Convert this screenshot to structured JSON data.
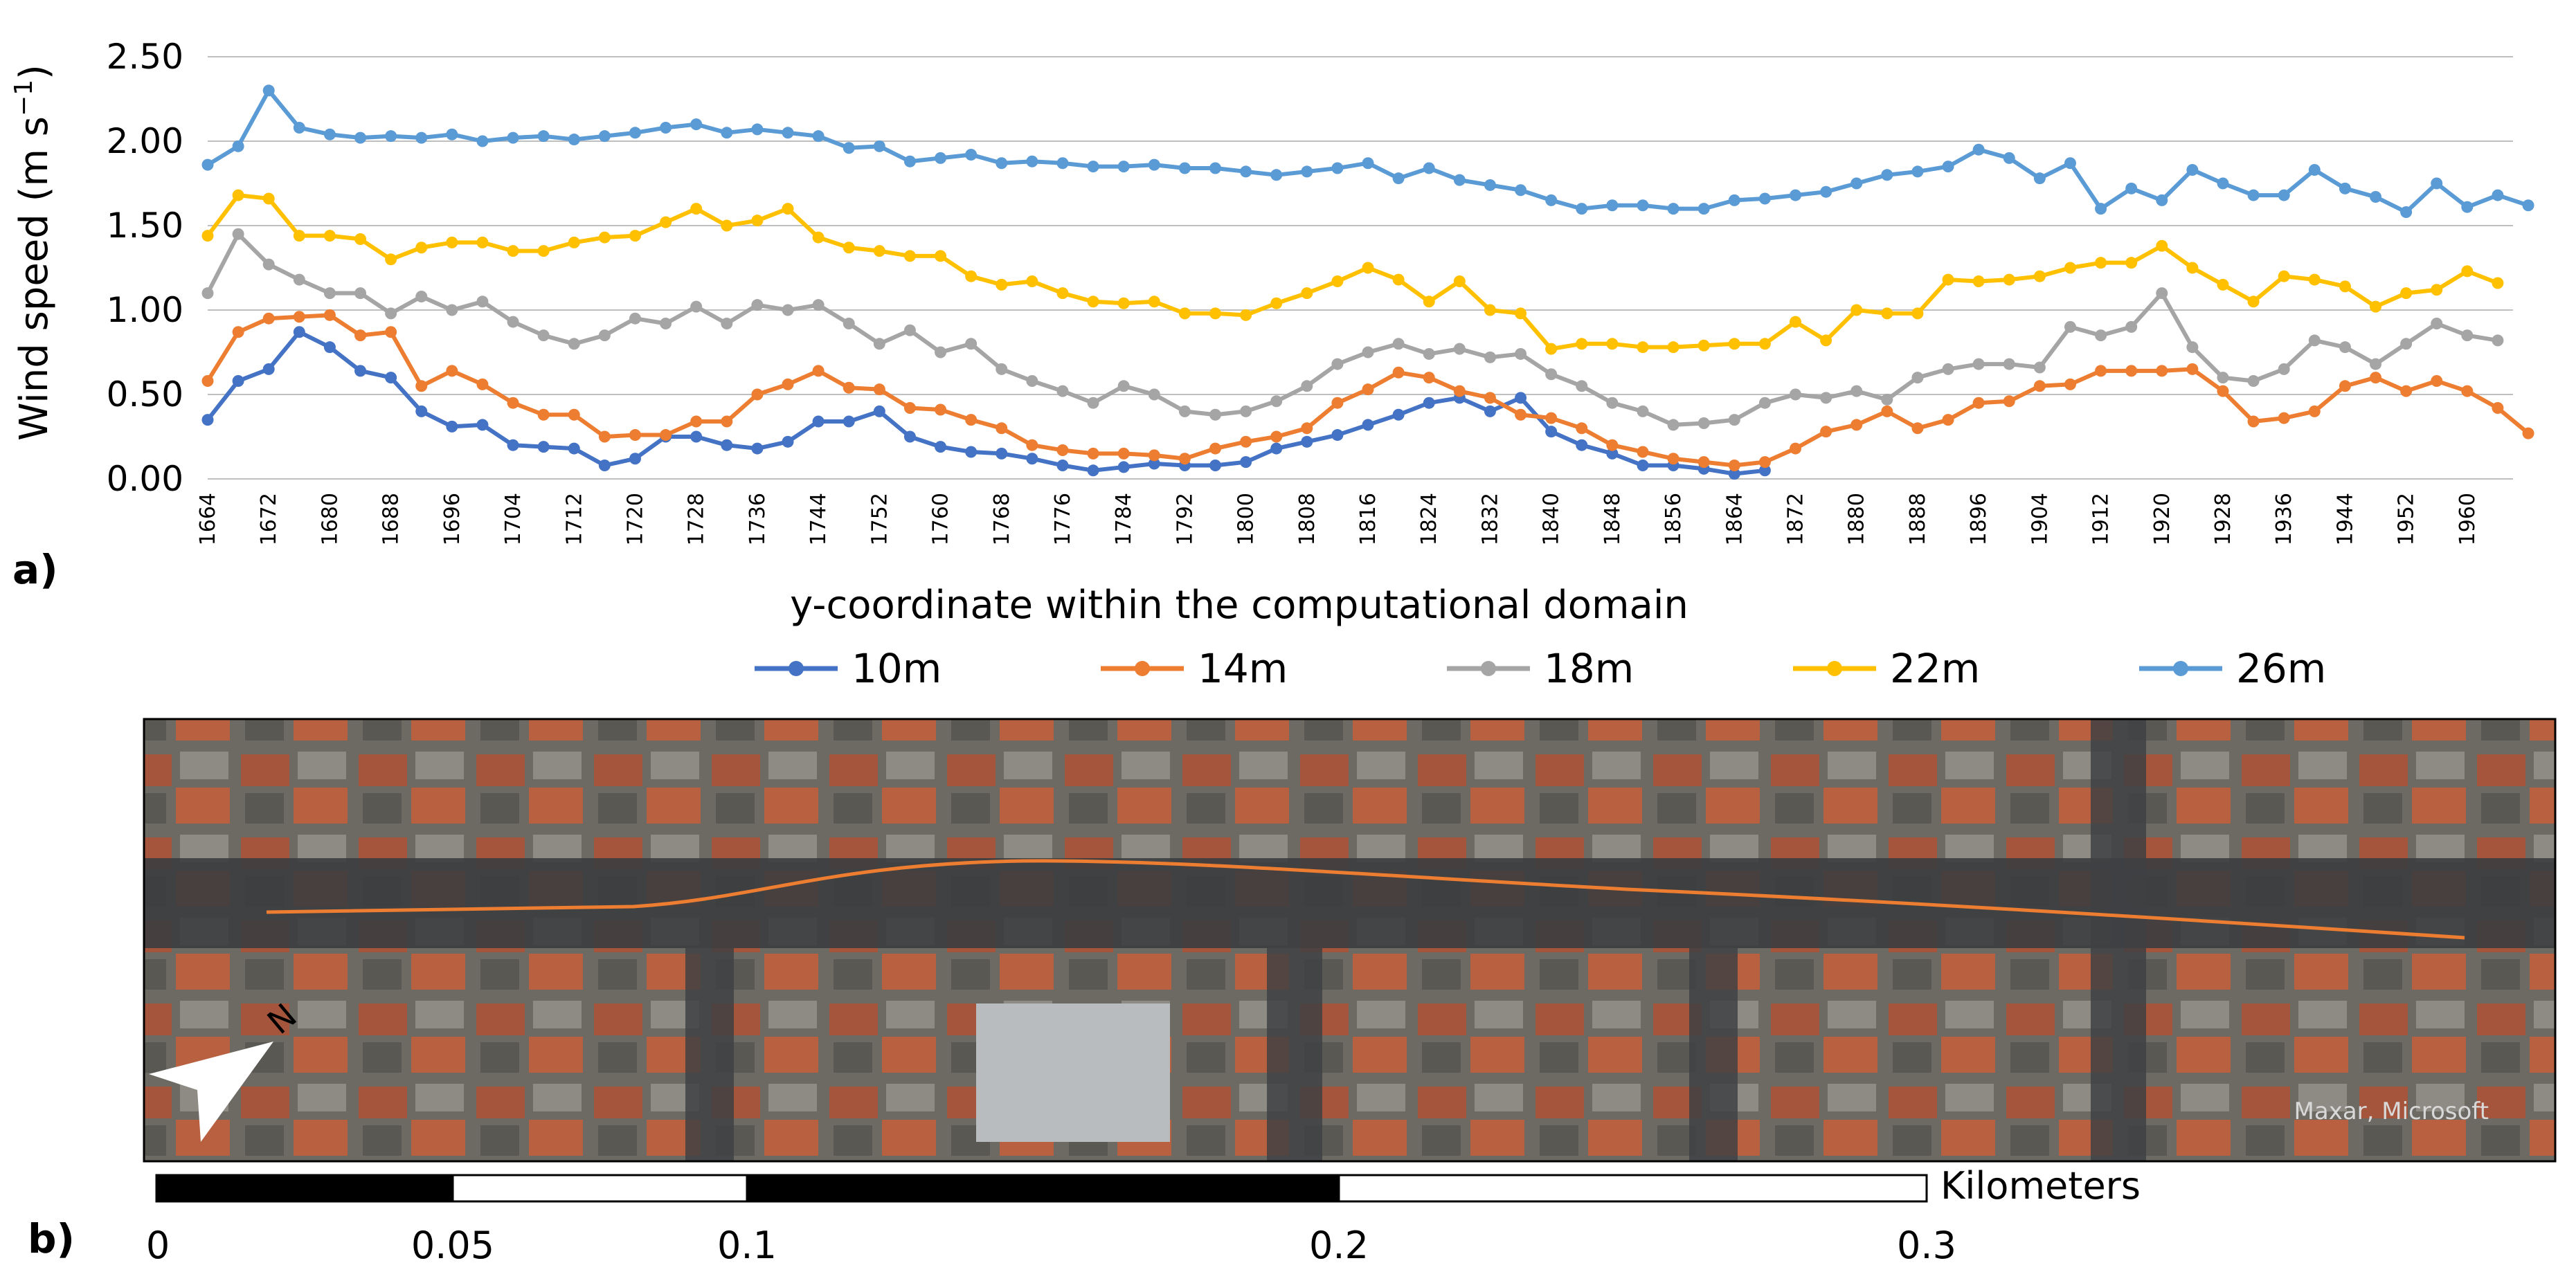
{
  "chart_data": {
    "type": "line",
    "xlabel": "y-coordinate within the computational domain",
    "ylabel": "Wind speed (m s",
    "ylabel_sup": "−1",
    "ylabel_close": ")",
    "ylim": [
      0,
      2.5
    ],
    "yticks": [
      "0.00",
      "0.50",
      "1.00",
      "1.50",
      "2.00",
      "2.50"
    ],
    "xlim": [
      1664,
      1966
    ],
    "xticks": [
      1664,
      1672,
      1680,
      1688,
      1696,
      1704,
      1712,
      1720,
      1728,
      1736,
      1744,
      1752,
      1760,
      1768,
      1776,
      1784,
      1792,
      1800,
      1808,
      1816,
      1824,
      1832,
      1840,
      1848,
      1856,
      1864,
      1872,
      1880,
      1888,
      1896,
      1904,
      1912,
      1920,
      1928,
      1936,
      1944,
      1952,
      1960
    ],
    "grid": "horizontal",
    "legend_position": "bottom",
    "x_start": 1664,
    "x_step": 4,
    "series": [
      {
        "name": "10m",
        "color": "#4472C4",
        "values": [
          0.35,
          0.58,
          0.65,
          0.87,
          0.78,
          0.64,
          0.6,
          0.4,
          0.31,
          0.32,
          0.2,
          0.19,
          0.18,
          0.08,
          0.12,
          0.25,
          0.25,
          0.2,
          0.18,
          0.22,
          0.34,
          0.34,
          0.4,
          0.25,
          0.19,
          0.16,
          0.15,
          0.12,
          0.08,
          0.05,
          0.07,
          0.09,
          0.08,
          0.08,
          0.1,
          0.18,
          0.22,
          0.26,
          0.32,
          0.38,
          0.45,
          0.48,
          0.4,
          0.48,
          0.28,
          0.2,
          0.15,
          0.08,
          0.08,
          0.06,
          0.03,
          0.05
        ]
      },
      {
        "name": "14m",
        "color": "#ED7D31",
        "values": [
          0.58,
          0.87,
          0.95,
          0.96,
          0.97,
          0.85,
          0.87,
          0.55,
          0.64,
          0.56,
          0.45,
          0.38,
          0.38,
          0.25,
          0.26,
          0.26,
          0.34,
          0.34,
          0.5,
          0.56,
          0.64,
          0.54,
          0.53,
          0.42,
          0.41,
          0.35,
          0.3,
          0.2,
          0.17,
          0.15,
          0.15,
          0.14,
          0.12,
          0.18,
          0.22,
          0.25,
          0.3,
          0.45,
          0.53,
          0.63,
          0.6,
          0.52,
          0.48,
          0.38,
          0.36,
          0.3,
          0.2,
          0.16,
          0.12,
          0.1,
          0.08,
          0.1,
          0.18,
          0.28,
          0.32,
          0.4,
          0.3,
          0.35,
          0.45,
          0.46,
          0.55,
          0.56,
          0.64,
          0.64,
          0.64,
          0.65,
          0.52,
          0.34,
          0.36,
          0.4,
          0.55,
          0.6,
          0.52,
          0.58,
          0.52,
          0.42,
          0.27
        ]
      },
      {
        "name": "18m",
        "color": "#A5A5A5",
        "values": [
          1.1,
          1.45,
          1.27,
          1.18,
          1.1,
          1.1,
          0.98,
          1.08,
          1.0,
          1.05,
          0.93,
          0.85,
          0.8,
          0.85,
          0.95,
          0.92,
          1.02,
          0.92,
          1.03,
          1.0,
          1.03,
          0.92,
          0.8,
          0.88,
          0.75,
          0.8,
          0.65,
          0.58,
          0.52,
          0.45,
          0.55,
          0.5,
          0.4,
          0.38,
          0.4,
          0.46,
          0.55,
          0.68,
          0.75,
          0.8,
          0.74,
          0.77,
          0.72,
          0.74,
          0.62,
          0.55,
          0.45,
          0.4,
          0.32,
          0.33,
          0.35,
          0.45,
          0.5,
          0.48,
          0.52,
          0.47,
          0.6,
          0.65,
          0.68,
          0.68,
          0.66,
          0.9,
          0.85,
          0.9,
          1.1,
          0.78,
          0.6,
          0.58,
          0.65,
          0.82,
          0.78,
          0.68,
          0.8,
          0.92,
          0.85,
          0.82
        ]
      },
      {
        "name": "22m",
        "color": "#FFC000",
        "values": [
          1.44,
          1.68,
          1.66,
          1.44,
          1.44,
          1.42,
          1.3,
          1.37,
          1.4,
          1.4,
          1.35,
          1.35,
          1.4,
          1.43,
          1.44,
          1.52,
          1.6,
          1.5,
          1.53,
          1.6,
          1.43,
          1.37,
          1.35,
          1.32,
          1.32,
          1.2,
          1.15,
          1.17,
          1.1,
          1.05,
          1.04,
          1.05,
          0.98,
          0.98,
          0.97,
          1.04,
          1.1,
          1.17,
          1.25,
          1.18,
          1.05,
          1.17,
          1.0,
          0.98,
          0.77,
          0.8,
          0.8,
          0.78,
          0.78,
          0.79,
          0.8,
          0.8,
          0.93,
          0.82,
          1.0,
          0.98,
          0.98,
          1.18,
          1.17,
          1.18,
          1.2,
          1.25,
          1.28,
          1.28,
          1.38,
          1.25,
          1.15,
          1.05,
          1.2,
          1.18,
          1.14,
          1.02,
          1.1,
          1.12,
          1.23,
          1.16
        ]
      },
      {
        "name": "26m",
        "color": "#5B9BD5",
        "values": [
          1.86,
          1.97,
          2.3,
          2.08,
          2.04,
          2.02,
          2.03,
          2.02,
          2.04,
          2.0,
          2.02,
          2.03,
          2.01,
          2.03,
          2.05,
          2.08,
          2.1,
          2.05,
          2.07,
          2.05,
          2.03,
          1.96,
          1.97,
          1.88,
          1.9,
          1.92,
          1.87,
          1.88,
          1.87,
          1.85,
          1.85,
          1.86,
          1.84,
          1.84,
          1.82,
          1.8,
          1.82,
          1.84,
          1.87,
          1.78,
          1.84,
          1.77,
          1.74,
          1.71,
          1.65,
          1.6,
          1.62,
          1.62,
          1.6,
          1.6,
          1.65,
          1.66,
          1.68,
          1.7,
          1.75,
          1.8,
          1.82,
          1.85,
          1.95,
          1.9,
          1.78,
          1.87,
          1.6,
          1.72,
          1.65,
          1.83,
          1.75,
          1.68,
          1.68,
          1.83,
          1.72,
          1.67,
          1.58,
          1.75,
          1.61,
          1.68,
          1.62
        ]
      }
    ]
  },
  "labels": {
    "panel_a": "a)",
    "panel_b": "b)"
  },
  "map": {
    "credit": "Maxar, Microsoft",
    "north_letter": "N",
    "route_color": "#ED7D31"
  },
  "scale_bar": {
    "unit": "Kilometers",
    "ticks": [
      "0",
      "0.05",
      "0.1",
      "0.2",
      "0.3"
    ]
  }
}
